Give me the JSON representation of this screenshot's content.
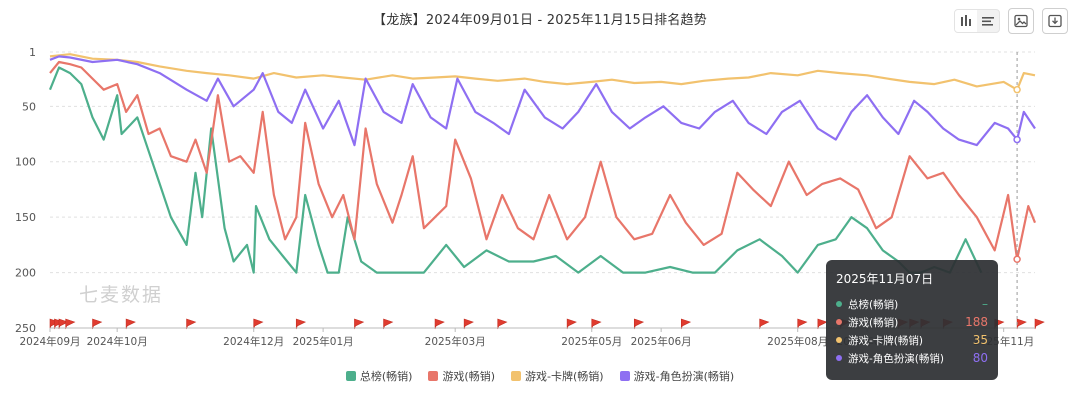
{
  "chart_data": {
    "type": "line",
    "title": "【龙族】2024年09月01日 - 2025年11月15日排名趋势",
    "y_inverted": true,
    "ylim": [
      1,
      250
    ],
    "yticks": [
      1,
      50,
      100,
      150,
      200,
      250
    ],
    "x_tick_labels": [
      "2024年09月",
      "2024年10月",
      "2024年12月",
      "2025年01月",
      "2025年03月",
      "2025年05月",
      "2025年06月",
      "2025年08月",
      "2025年09月",
      "2025年11月"
    ],
    "x_tick_dates": [
      "2024-09-01",
      "2024-10-01",
      "2024-12-01",
      "2025-01-01",
      "2025-03-01",
      "2025-05-01",
      "2025-06-01",
      "2025-08-01",
      "2025-09-01",
      "2025-11-01"
    ],
    "x_range": [
      "2024-09-01",
      "2025-11-15"
    ],
    "grid": "horizontal-dashed",
    "legend_position": "bottom",
    "series": [
      {
        "name": "总榜(畅销)",
        "color": "#4daf8c",
        "points": [
          [
            "2024-09-01",
            35
          ],
          [
            "2024-09-05",
            15
          ],
          [
            "2024-09-10",
            20
          ],
          [
            "2024-09-15",
            30
          ],
          [
            "2024-09-20",
            60
          ],
          [
            "2024-09-25",
            80
          ],
          [
            "2024-10-01",
            40
          ],
          [
            "2024-10-03",
            75
          ],
          [
            "2024-10-10",
            60
          ],
          [
            "2024-10-15",
            90
          ],
          [
            "2024-10-20",
            120
          ],
          [
            "2024-10-25",
            150
          ],
          [
            "2024-11-01",
            175
          ],
          [
            "2024-11-05",
            110
          ],
          [
            "2024-11-08",
            150
          ],
          [
            "2024-11-12",
            70
          ],
          [
            "2024-11-18",
            160
          ],
          [
            "2024-11-22",
            190
          ],
          [
            "2024-11-28",
            175
          ],
          [
            "2024-12-01",
            200
          ],
          [
            "2024-12-02",
            140
          ],
          [
            "2024-12-08",
            170
          ],
          [
            "2024-12-14",
            185
          ],
          [
            "2024-12-20",
            200
          ],
          [
            "2024-12-24",
            130
          ],
          [
            "2024-12-30",
            175
          ],
          [
            "2025-01-03",
            200
          ],
          [
            "2025-01-08",
            200
          ],
          [
            "2025-01-12",
            150
          ],
          [
            "2025-01-18",
            190
          ],
          [
            "2025-01-25",
            200
          ],
          [
            "2025-02-05",
            200
          ],
          [
            "2025-02-15",
            200
          ],
          [
            "2025-02-25",
            175
          ],
          [
            "2025-03-05",
            195
          ],
          [
            "2025-03-15",
            180
          ],
          [
            "2025-03-25",
            190
          ],
          [
            "2025-04-05",
            190
          ],
          [
            "2025-04-15",
            185
          ],
          [
            "2025-04-25",
            200
          ],
          [
            "2025-05-05",
            185
          ],
          [
            "2025-05-15",
            200
          ],
          [
            "2025-05-25",
            200
          ],
          [
            "2025-06-05",
            195
          ],
          [
            "2025-06-15",
            200
          ],
          [
            "2025-06-25",
            200
          ],
          [
            "2025-07-05",
            180
          ],
          [
            "2025-07-15",
            170
          ],
          [
            "2025-07-25",
            185
          ],
          [
            "2025-08-01",
            200
          ],
          [
            "2025-08-10",
            175
          ],
          [
            "2025-08-18",
            170
          ],
          [
            "2025-08-25",
            150
          ],
          [
            "2025-09-01",
            160
          ],
          [
            "2025-09-08",
            180
          ],
          [
            "2025-09-15",
            190
          ],
          [
            "2025-09-20",
            200
          ],
          [
            "2025-09-25",
            200
          ],
          [
            "2025-10-01",
            195
          ],
          [
            "2025-10-08",
            200
          ],
          [
            "2025-10-15",
            170
          ],
          [
            "2025-10-22",
            200
          ],
          [
            "2025-11-07",
            null
          ],
          [
            "2025-11-15",
            null
          ]
        ]
      },
      {
        "name": "游戏(畅销)",
        "color": "#e8766a",
        "points": [
          [
            "2024-09-01",
            20
          ],
          [
            "2024-09-05",
            10
          ],
          [
            "2024-09-10",
            12
          ],
          [
            "2024-09-15",
            15
          ],
          [
            "2024-09-20",
            25
          ],
          [
            "2024-09-25",
            35
          ],
          [
            "2024-10-01",
            30
          ],
          [
            "2024-10-05",
            55
          ],
          [
            "2024-10-10",
            40
          ],
          [
            "2024-10-15",
            75
          ],
          [
            "2024-10-20",
            70
          ],
          [
            "2024-10-25",
            95
          ],
          [
            "2024-11-01",
            100
          ],
          [
            "2024-11-05",
            80
          ],
          [
            "2024-11-10",
            110
          ],
          [
            "2024-11-15",
            40
          ],
          [
            "2024-11-20",
            100
          ],
          [
            "2024-11-25",
            95
          ],
          [
            "2024-12-01",
            110
          ],
          [
            "2024-12-05",
            55
          ],
          [
            "2024-12-10",
            130
          ],
          [
            "2024-12-15",
            170
          ],
          [
            "2024-12-20",
            150
          ],
          [
            "2024-12-24",
            65
          ],
          [
            "2024-12-30",
            120
          ],
          [
            "2025-01-05",
            150
          ],
          [
            "2025-01-10",
            130
          ],
          [
            "2025-01-15",
            170
          ],
          [
            "2025-01-20",
            70
          ],
          [
            "2025-01-25",
            120
          ],
          [
            "2025-02-01",
            155
          ],
          [
            "2025-02-05",
            130
          ],
          [
            "2025-02-10",
            95
          ],
          [
            "2025-02-15",
            160
          ],
          [
            "2025-02-20",
            150
          ],
          [
            "2025-02-25",
            140
          ],
          [
            "2025-03-01",
            80
          ],
          [
            "2025-03-08",
            115
          ],
          [
            "2025-03-15",
            170
          ],
          [
            "2025-03-22",
            130
          ],
          [
            "2025-03-29",
            160
          ],
          [
            "2025-04-05",
            170
          ],
          [
            "2025-04-12",
            130
          ],
          [
            "2025-04-20",
            170
          ],
          [
            "2025-04-28",
            150
          ],
          [
            "2025-05-05",
            100
          ],
          [
            "2025-05-12",
            150
          ],
          [
            "2025-05-20",
            170
          ],
          [
            "2025-05-28",
            165
          ],
          [
            "2025-06-05",
            130
          ],
          [
            "2025-06-12",
            155
          ],
          [
            "2025-06-20",
            175
          ],
          [
            "2025-06-28",
            165
          ],
          [
            "2025-07-05",
            110
          ],
          [
            "2025-07-12",
            125
          ],
          [
            "2025-07-20",
            140
          ],
          [
            "2025-07-28",
            100
          ],
          [
            "2025-08-05",
            130
          ],
          [
            "2025-08-12",
            120
          ],
          [
            "2025-08-20",
            115
          ],
          [
            "2025-08-28",
            125
          ],
          [
            "2025-09-05",
            160
          ],
          [
            "2025-09-12",
            150
          ],
          [
            "2025-09-20",
            95
          ],
          [
            "2025-09-28",
            115
          ],
          [
            "2025-10-05",
            110
          ],
          [
            "2025-10-12",
            130
          ],
          [
            "2025-10-20",
            150
          ],
          [
            "2025-10-28",
            180
          ],
          [
            "2025-11-03",
            130
          ],
          [
            "2025-11-07",
            188
          ],
          [
            "2025-11-12",
            140
          ],
          [
            "2025-11-15",
            155
          ]
        ]
      },
      {
        "name": "游戏-卡牌(畅销)",
        "color": "#f2c26e",
        "points": [
          [
            "2024-09-01",
            5
          ],
          [
            "2024-09-10",
            3
          ],
          [
            "2024-09-20",
            7
          ],
          [
            "2024-10-01",
            8
          ],
          [
            "2024-10-10",
            10
          ],
          [
            "2024-10-20",
            14
          ],
          [
            "2024-11-01",
            18
          ],
          [
            "2024-11-10",
            20
          ],
          [
            "2024-11-20",
            22
          ],
          [
            "2024-12-01",
            25
          ],
          [
            "2024-12-10",
            20
          ],
          [
            "2024-12-20",
            24
          ],
          [
            "2025-01-01",
            22
          ],
          [
            "2025-01-10",
            24
          ],
          [
            "2025-01-20",
            26
          ],
          [
            "2025-02-01",
            22
          ],
          [
            "2025-02-10",
            25
          ],
          [
            "2025-02-20",
            24
          ],
          [
            "2025-03-01",
            23
          ],
          [
            "2025-03-10",
            25
          ],
          [
            "2025-03-20",
            27
          ],
          [
            "2025-04-01",
            25
          ],
          [
            "2025-04-10",
            28
          ],
          [
            "2025-04-20",
            30
          ],
          [
            "2025-05-01",
            28
          ],
          [
            "2025-05-10",
            26
          ],
          [
            "2025-05-20",
            29
          ],
          [
            "2025-06-01",
            28
          ],
          [
            "2025-06-10",
            30
          ],
          [
            "2025-06-20",
            27
          ],
          [
            "2025-07-01",
            25
          ],
          [
            "2025-07-10",
            24
          ],
          [
            "2025-07-20",
            20
          ],
          [
            "2025-08-01",
            22
          ],
          [
            "2025-08-10",
            18
          ],
          [
            "2025-08-20",
            20
          ],
          [
            "2025-09-01",
            22
          ],
          [
            "2025-09-10",
            25
          ],
          [
            "2025-09-20",
            28
          ],
          [
            "2025-10-01",
            30
          ],
          [
            "2025-10-10",
            26
          ],
          [
            "2025-10-20",
            32
          ],
          [
            "2025-11-01",
            28
          ],
          [
            "2025-11-07",
            35
          ],
          [
            "2025-11-10",
            20
          ],
          [
            "2025-11-15",
            22
          ]
        ]
      },
      {
        "name": "游戏-角色扮演(畅销)",
        "color": "#8e6ff2",
        "points": [
          [
            "2024-09-01",
            8
          ],
          [
            "2024-09-05",
            5
          ],
          [
            "2024-09-10",
            6
          ],
          [
            "2024-09-20",
            10
          ],
          [
            "2024-10-01",
            8
          ],
          [
            "2024-10-10",
            12
          ],
          [
            "2024-10-20",
            20
          ],
          [
            "2024-11-01",
            35
          ],
          [
            "2024-11-10",
            45
          ],
          [
            "2024-11-15",
            25
          ],
          [
            "2024-11-22",
            50
          ],
          [
            "2024-12-01",
            35
          ],
          [
            "2024-12-05",
            20
          ],
          [
            "2024-12-12",
            55
          ],
          [
            "2024-12-18",
            65
          ],
          [
            "2024-12-24",
            35
          ],
          [
            "2025-01-01",
            70
          ],
          [
            "2025-01-08",
            45
          ],
          [
            "2025-01-15",
            85
          ],
          [
            "2025-01-20",
            25
          ],
          [
            "2025-01-28",
            55
          ],
          [
            "2025-02-05",
            65
          ],
          [
            "2025-02-10",
            30
          ],
          [
            "2025-02-18",
            60
          ],
          [
            "2025-02-25",
            70
          ],
          [
            "2025-03-02",
            25
          ],
          [
            "2025-03-10",
            55
          ],
          [
            "2025-03-18",
            65
          ],
          [
            "2025-03-25",
            75
          ],
          [
            "2025-04-01",
            35
          ],
          [
            "2025-04-10",
            60
          ],
          [
            "2025-04-18",
            70
          ],
          [
            "2025-04-25",
            55
          ],
          [
            "2025-05-03",
            30
          ],
          [
            "2025-05-10",
            55
          ],
          [
            "2025-05-18",
            70
          ],
          [
            "2025-05-25",
            60
          ],
          [
            "2025-06-02",
            50
          ],
          [
            "2025-06-10",
            65
          ],
          [
            "2025-06-18",
            70
          ],
          [
            "2025-06-25",
            55
          ],
          [
            "2025-07-03",
            45
          ],
          [
            "2025-07-10",
            65
          ],
          [
            "2025-07-18",
            75
          ],
          [
            "2025-07-25",
            55
          ],
          [
            "2025-08-02",
            45
          ],
          [
            "2025-08-10",
            70
          ],
          [
            "2025-08-18",
            80
          ],
          [
            "2025-08-25",
            55
          ],
          [
            "2025-09-01",
            40
          ],
          [
            "2025-09-08",
            60
          ],
          [
            "2025-09-15",
            75
          ],
          [
            "2025-09-22",
            45
          ],
          [
            "2025-09-28",
            55
          ],
          [
            "2025-10-05",
            70
          ],
          [
            "2025-10-12",
            80
          ],
          [
            "2025-10-20",
            85
          ],
          [
            "2025-10-28",
            65
          ],
          [
            "2025-11-03",
            70
          ],
          [
            "2025-11-07",
            80
          ],
          [
            "2025-11-10",
            55
          ],
          [
            "2025-11-15",
            70
          ]
        ]
      }
    ],
    "event_flags": [
      "2024-09-01",
      "2024-09-03",
      "2024-09-05",
      "2024-09-08",
      "2024-09-20",
      "2024-10-05",
      "2024-11-01",
      "2024-12-01",
      "2024-12-20",
      "2025-01-15",
      "2025-01-28",
      "2025-02-20",
      "2025-03-05",
      "2025-03-20",
      "2025-04-20",
      "2025-05-01",
      "2025-05-20",
      "2025-06-10",
      "2025-07-15",
      "2025-08-01",
      "2025-08-10",
      "2025-08-20",
      "2025-09-15",
      "2025-09-20",
      "2025-09-25",
      "2025-10-05",
      "2025-10-28",
      "2025-11-07",
      "2025-11-15"
    ],
    "cursor_date": "2025-11-07"
  },
  "tooltip": {
    "date": "2025年11月07日",
    "rows": [
      {
        "name": "总榜(畅销)",
        "value": "–",
        "color": "#4daf8c"
      },
      {
        "name": "游戏(畅销)",
        "value": "188",
        "color": "#e8766a"
      },
      {
        "name": "游戏-卡牌(畅销)",
        "value": "35",
        "color": "#f2c26e"
      },
      {
        "name": "游戏-角色扮演(畅销)",
        "value": "80",
        "color": "#8e6ff2"
      }
    ]
  },
  "watermark": "七麦数据",
  "toolbar": {
    "icons": [
      "bar-chart-icon",
      "list-icon",
      "image-download-icon",
      "download-icon"
    ]
  }
}
